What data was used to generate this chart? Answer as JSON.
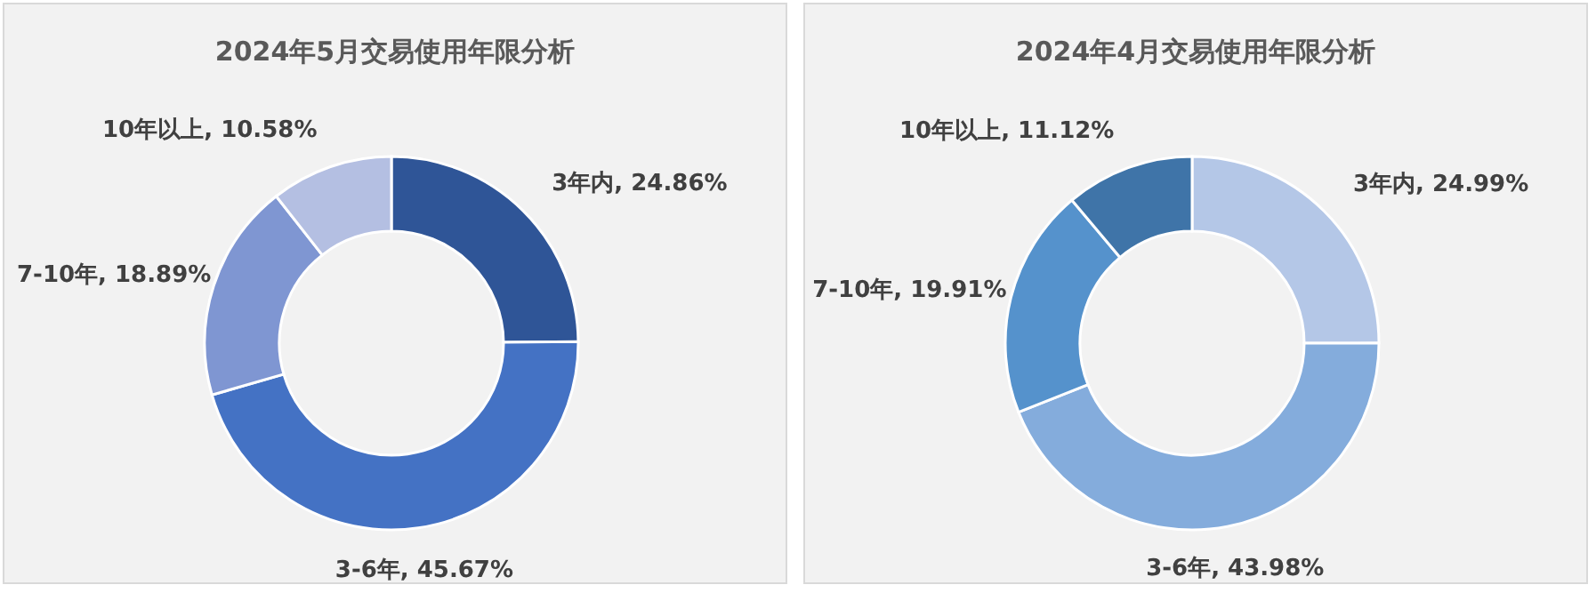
{
  "chart_data": [
    {
      "type": "donut",
      "title": "2024年5月交易使用年限分析",
      "categories": [
        "3年内",
        "3-6年",
        "7-10年",
        "10年以上"
      ],
      "values": [
        24.86,
        45.67,
        18.89,
        10.58
      ],
      "value_labels": [
        "24.86%",
        "45.67%",
        "18.89%",
        "10.58%"
      ],
      "colors": [
        "#2f5597",
        "#4472c4",
        "#7f96d2",
        "#b4bfe2"
      ],
      "legend": false
    },
    {
      "type": "donut",
      "title": "2024年4月交易使用年限分析",
      "categories": [
        "3年内",
        "3-6年",
        "7-10年",
        "10年以上"
      ],
      "values": [
        24.99,
        43.98,
        19.91,
        11.12
      ],
      "value_labels": [
        "24.99%",
        "43.98%",
        "19.91%",
        "11.12%"
      ],
      "colors": [
        "#b4c7e7",
        "#84acdc",
        "#5592cc",
        "#3f74a8"
      ],
      "legend": false
    }
  ]
}
